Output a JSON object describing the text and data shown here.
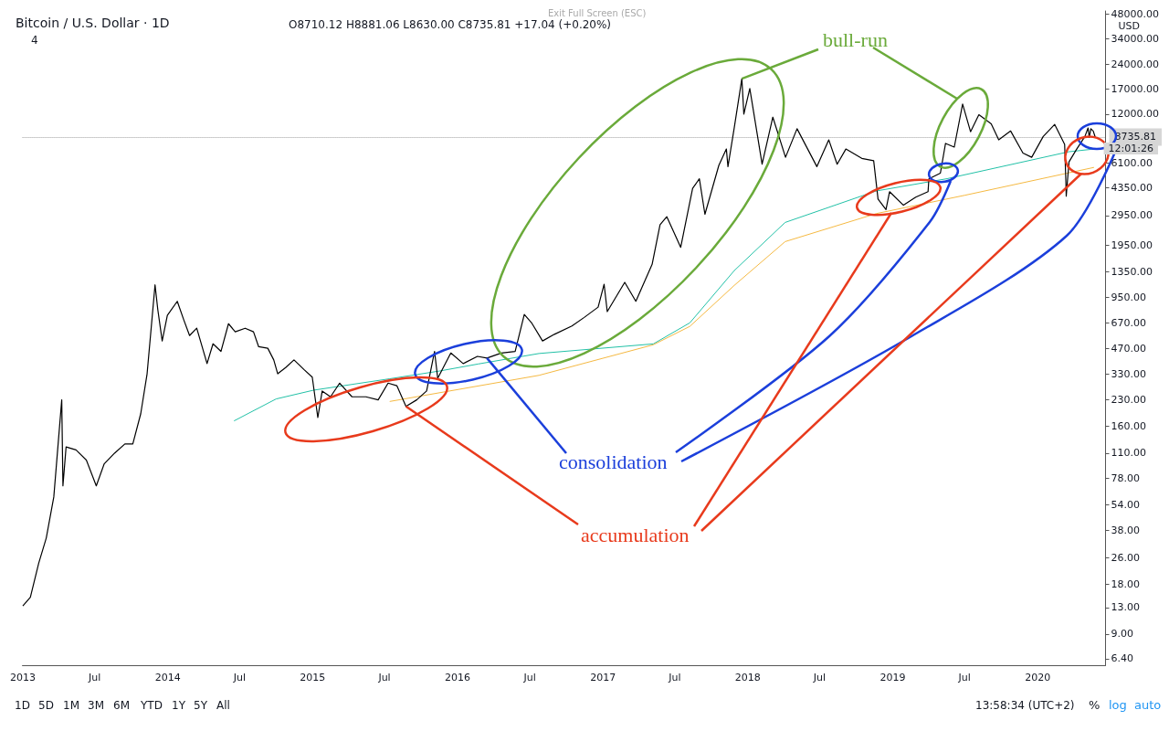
{
  "chart_data": {
    "type": "line",
    "title": "Bitcoin / U.S. Dollar · 1D",
    "subtitle": "O8710.12 H8881.06 L8630.00 C8735.81 +17.04 (+0.20%)",
    "ylabel": "USD",
    "log": true,
    "grid": false,
    "marker": "none",
    "line_style": "solid",
    "xlim": [
      "2012-12-31",
      "2020-06-20"
    ],
    "xticks": [
      "2013",
      {
        "value": "2013-07",
        "label": "Jul"
      },
      "2014",
      {
        "value": "2014-07",
        "label": "Jul"
      },
      "2015",
      {
        "value": "2015-07",
        "label": "Jul"
      },
      "2016",
      {
        "value": "2016-07",
        "label": "Jul"
      },
      "2017",
      {
        "value": "2017-07",
        "label": "Jul"
      },
      "2018",
      {
        "value": "2018-07",
        "label": "Jul"
      },
      "2019",
      {
        "value": "2019-07",
        "label": "Jul"
      },
      "2020"
    ],
    "ylim": [
      5.85,
      50000
    ],
    "yticks": [
      {
        "value": 6.4,
        "label": "6.40"
      },
      {
        "value": 9,
        "label": "9.00"
      },
      {
        "value": 13,
        "label": "13.00"
      },
      {
        "value": 18,
        "label": "18.00"
      },
      {
        "value": 26,
        "label": "26.00"
      },
      {
        "value": 38,
        "label": "38.00"
      },
      {
        "value": 54,
        "label": "54.00"
      },
      {
        "value": 78,
        "label": "78.00"
      },
      {
        "value": 110,
        "label": "110.00"
      },
      {
        "value": 160,
        "label": "160.00"
      },
      {
        "value": 230,
        "label": "230.00"
      },
      {
        "value": 330,
        "label": "330.00"
      },
      {
        "value": 470,
        "label": "470.00"
      },
      {
        "value": 670,
        "label": "670.00"
      },
      {
        "value": 950,
        "label": "950.00"
      },
      {
        "value": 1350,
        "label": "1350.00"
      },
      {
        "value": 1950,
        "label": "1950.00"
      },
      {
        "value": 2950,
        "label": "2950.00"
      },
      {
        "value": 4350,
        "label": "4350.00"
      },
      {
        "value": 6100,
        "label": "6100.00"
      },
      {
        "value": 12000,
        "label": "12000.00"
      },
      {
        "value": 17000,
        "label": "17000.00"
      },
      {
        "value": 24000,
        "label": "24000.00"
      },
      {
        "value": 34000,
        "label": "34000.00"
      },
      {
        "value": 48000,
        "label": "48000.00"
      }
    ],
    "ref_lines": [
      {
        "axis": "y",
        "value": 8735.81,
        "label": "8735.81",
        "color": "#9e9e9e",
        "line_style": "dotted"
      }
    ],
    "series": [
      {
        "color": "#000000",
        "x": [
          "2013-01-01",
          "2013-01-20",
          "2013-02-10",
          "2013-03-01",
          "2013-03-20",
          "2013-04-09",
          "2013-04-12",
          "2013-04-20",
          "2013-05-15",
          "2013-06-10",
          "2013-07-05",
          "2013-07-25",
          "2013-08-20",
          "2013-09-15",
          "2013-10-05",
          "2013-10-25",
          "2013-11-10",
          "2013-11-30",
          "2013-12-07",
          "2013-12-18",
          "2013-12-31",
          "2014-01-25",
          "2014-02-10",
          "2014-02-25",
          "2014-03-15",
          "2014-04-10",
          "2014-04-25",
          "2014-05-15",
          "2014-06-03",
          "2014-06-20",
          "2014-07-15",
          "2014-08-05",
          "2014-08-18",
          "2014-09-10",
          "2014-09-25",
          "2014-10-05",
          "2014-10-25",
          "2014-11-15",
          "2014-12-10",
          "2014-12-31",
          "2015-01-14",
          "2015-01-25",
          "2015-02-15",
          "2015-03-10",
          "2015-04-10",
          "2015-05-15",
          "2015-06-15",
          "2015-07-10",
          "2015-08-01",
          "2015-08-24",
          "2015-09-20",
          "2015-10-15",
          "2015-11-04",
          "2015-11-12",
          "2015-12-15",
          "2016-01-15",
          "2016-02-20",
          "2016-03-15",
          "2016-04-20",
          "2016-05-25",
          "2016-06-17",
          "2016-07-05",
          "2016-08-02",
          "2016-09-01",
          "2016-10-15",
          "2016-11-15",
          "2016-12-20",
          "2017-01-04",
          "2017-01-12",
          "2017-02-25",
          "2017-03-25",
          "2017-05-05",
          "2017-05-25",
          "2017-06-11",
          "2017-07-16",
          "2017-08-15",
          "2017-09-01",
          "2017-09-15",
          "2017-10-20",
          "2017-11-08",
          "2017-11-12",
          "2017-11-28",
          "2017-12-17",
          "2017-12-22",
          "2018-01-06",
          "2018-02-06",
          "2018-03-05",
          "2018-04-06",
          "2018-05-05",
          "2018-06-24",
          "2018-07-24",
          "2018-08-14",
          "2018-09-05",
          "2018-10-15",
          "2018-11-14",
          "2018-11-25",
          "2018-12-15",
          "2018-12-24",
          "2019-01-28",
          "2019-02-28",
          "2019-03-31",
          "2019-04-02",
          "2019-05-01",
          "2019-05-14",
          "2019-06-05",
          "2019-06-26",
          "2019-07-16",
          "2019-08-06",
          "2019-09-06",
          "2019-09-25",
          "2019-10-25",
          "2019-11-25",
          "2019-12-17",
          "2020-01-15",
          "2020-02-13",
          "2020-03-09",
          "2020-03-12",
          "2020-03-13",
          "2020-03-20",
          "2020-04-07",
          "2020-04-29",
          "2020-05-07",
          "2020-05-10",
          "2020-05-14",
          "2020-05-20",
          "2020-05-25"
        ],
        "values": [
          13.3,
          15,
          24,
          34,
          60,
          230,
          70,
          120,
          115,
          100,
          70,
          95,
          110,
          125,
          125,
          190,
          330,
          1130,
          800,
          520,
          740,
          900,
          700,
          560,
          620,
          380,
          500,
          450,
          660,
          590,
          620,
          590,
          480,
          470,
          400,
          330,
          360,
          400,
          350,
          315,
          180,
          260,
          240,
          290,
          240,
          240,
          230,
          290,
          280,
          210,
          230,
          260,
          450,
          310,
          440,
          380,
          420,
          410,
          440,
          450,
          750,
          670,
          520,
          570,
          640,
          720,
          830,
          1140,
          780,
          1170,
          900,
          1500,
          2600,
          2900,
          1900,
          4300,
          4900,
          3000,
          5900,
          7400,
          5800,
          10000,
          19600,
          12000,
          17100,
          6000,
          11500,
          6600,
          9800,
          5800,
          8400,
          6000,
          7400,
          6500,
          6300,
          3700,
          3200,
          4100,
          3400,
          3800,
          4100,
          4900,
          5300,
          8000,
          7600,
          13800,
          9400,
          11900,
          10500,
          8400,
          9500,
          7000,
          6600,
          8800,
          10400,
          7900,
          4800,
          3850,
          6200,
          7300,
          8800,
          9900,
          8700,
          9800,
          9500,
          8735.81
        ]
      },
      {
        "color": "#22c1a7",
        "x": [
          "2014-06-17",
          "2014-10-01",
          "2015-01-03",
          "2015-07-14",
          "2015-11-17",
          "2016-02-22",
          "2016-07-24",
          "2017-05-08",
          "2017-08-08",
          "2017-11-28",
          "2018-04-05",
          "2018-11-20",
          "2019-05-18",
          "2020-03-20",
          "2020-05-22"
        ],
        "values": [
          172,
          233,
          263,
          308,
          343,
          378,
          437,
          499,
          668,
          1377,
          2680,
          4140,
          4910,
          7130,
          7400
        ]
      },
      {
        "color": "#f5b942",
        "x": [
          "2015-07-14",
          "2016-07-24",
          "2017-05-08",
          "2017-08-08",
          "2017-11-28",
          "2018-04-05",
          "2018-11-20",
          "2019-07-01",
          "2020-05-22"
        ],
        "values": [
          225,
          323,
          493,
          636,
          1122,
          2055,
          3027,
          3900,
          5740
        ]
      }
    ],
    "annotations": [
      {
        "text": "bull-run",
        "x": "2017-12-17",
        "y": 19600
      },
      {
        "text": "consolidation",
        "x": "2016-03-15",
        "y": 410
      },
      {
        "text": "accumulation",
        "x": "2015-08-24",
        "y": 210
      },
      "Exit Full Screen (ESC)",
      "4",
      "12:01:26",
      "1D",
      "5D",
      "1M",
      "3M",
      "6M",
      "YTD",
      "1Y",
      "5Y",
      "All",
      "13:58:34 (UTC+2)",
      "%",
      "log",
      "auto"
    ]
  }
}
